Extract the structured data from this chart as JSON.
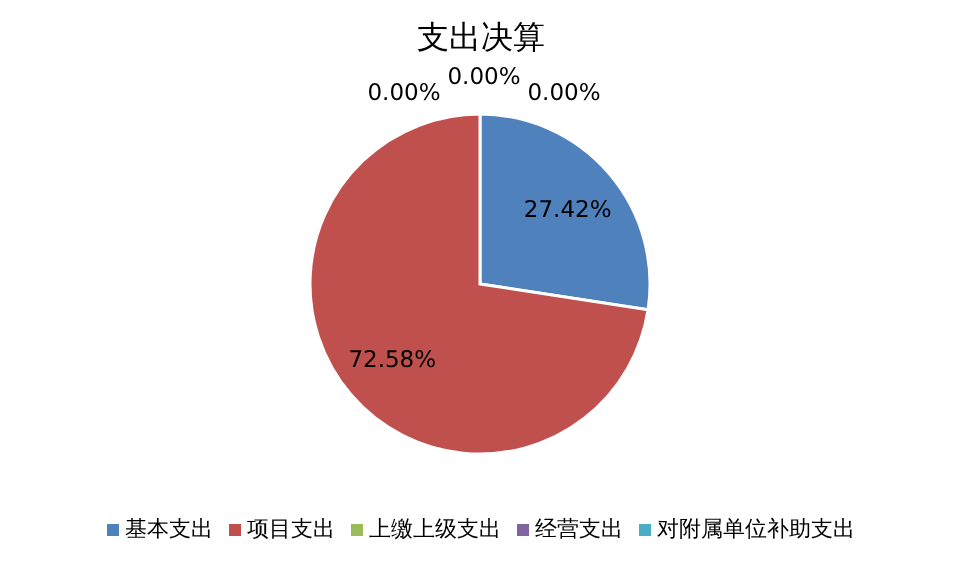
{
  "chart_data": {
    "type": "pie",
    "title": "支出决算",
    "categories": [
      "基本支出",
      "项目支出",
      "上缴上级支出",
      "经营支出",
      "对附属单位补助支出"
    ],
    "values": [
      27.42,
      72.58,
      0,
      0,
      0
    ],
    "value_labels": [
      "27.42%",
      "72.58%",
      "0.00%",
      "0.00%",
      "0.00%"
    ],
    "colors": [
      "#4f81bd",
      "#c0504d",
      "#9bbb59",
      "#8064a2",
      "#4bacc6"
    ],
    "legend": "bottom"
  }
}
